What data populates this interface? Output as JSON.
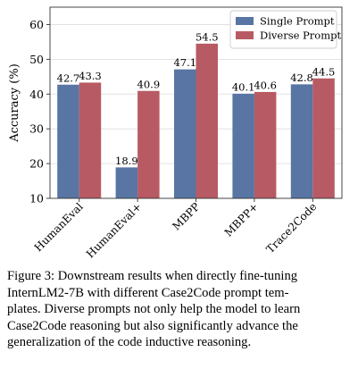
{
  "chart_data": {
    "type": "bar",
    "ylabel": "Accuracy (%)",
    "xlabel": "",
    "ylim": [
      10,
      65
    ],
    "yticks": [
      10,
      20,
      30,
      40,
      50,
      60
    ],
    "grid": true,
    "legend_position": "top-right",
    "categories": [
      "HumanEval",
      "HumanEval+",
      "MBPP",
      "MBPP+",
      "Trace2Code"
    ],
    "series": [
      {
        "name": "Single Prompt",
        "color": "#5875a4",
        "values": [
          42.7,
          18.9,
          47.1,
          40.1,
          42.8
        ]
      },
      {
        "name": "Diverse Prompt",
        "color": "#b85a64",
        "values": [
          43.3,
          40.9,
          54.5,
          40.6,
          44.5
        ]
      }
    ]
  },
  "caption": {
    "lines": [
      "Figure 3: Downstream results when directly fine-tuning",
      "InternLM2-7B with different Case2Code prompt tem-",
      "plates. Diverse prompts not only help the model to learn",
      "Case2Code reasoning but also significantly advance the",
      "generalization of the code inductive reasoning."
    ]
  }
}
